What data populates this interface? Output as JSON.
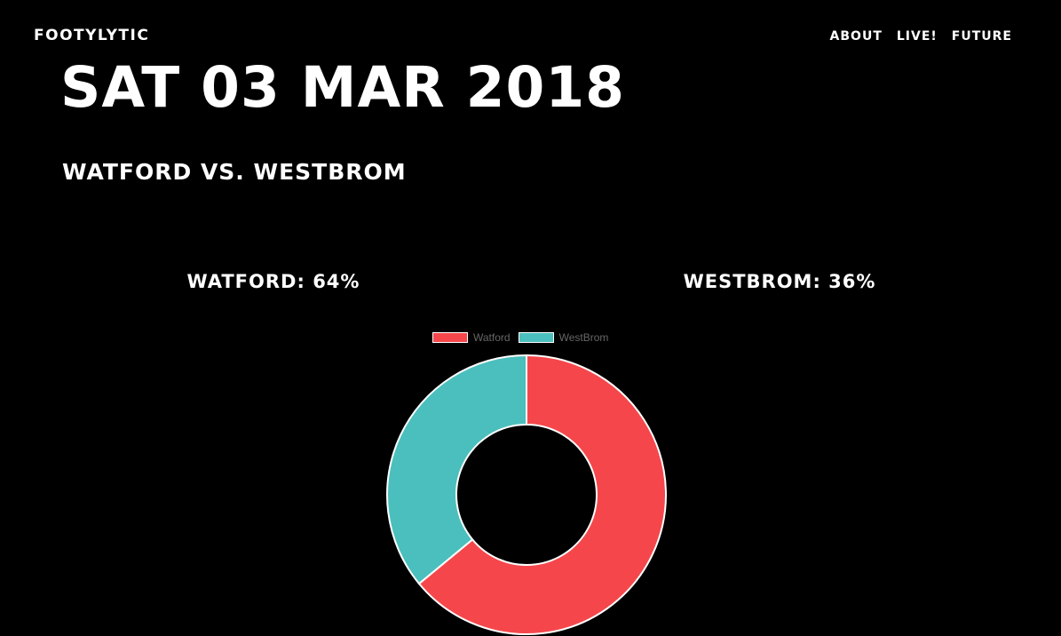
{
  "nav": {
    "brand": "FOOTYLYTIC",
    "links": [
      "ABOUT",
      "LIVE!",
      "FUTURE"
    ]
  },
  "match": {
    "date": "SAT 03 MAR 2018",
    "fixture": "WATFORD VS. WESTBROM",
    "home_pct_label": "WATFORD: 64%",
    "away_pct_label": "WESTBROM: 36%"
  },
  "chart_data": {
    "type": "pie",
    "categories": [
      "Watford",
      "WestBrom"
    ],
    "values": [
      64,
      36
    ],
    "colors": [
      "#f5474b",
      "#4bbfbd"
    ],
    "legend": "top",
    "donut": true
  }
}
